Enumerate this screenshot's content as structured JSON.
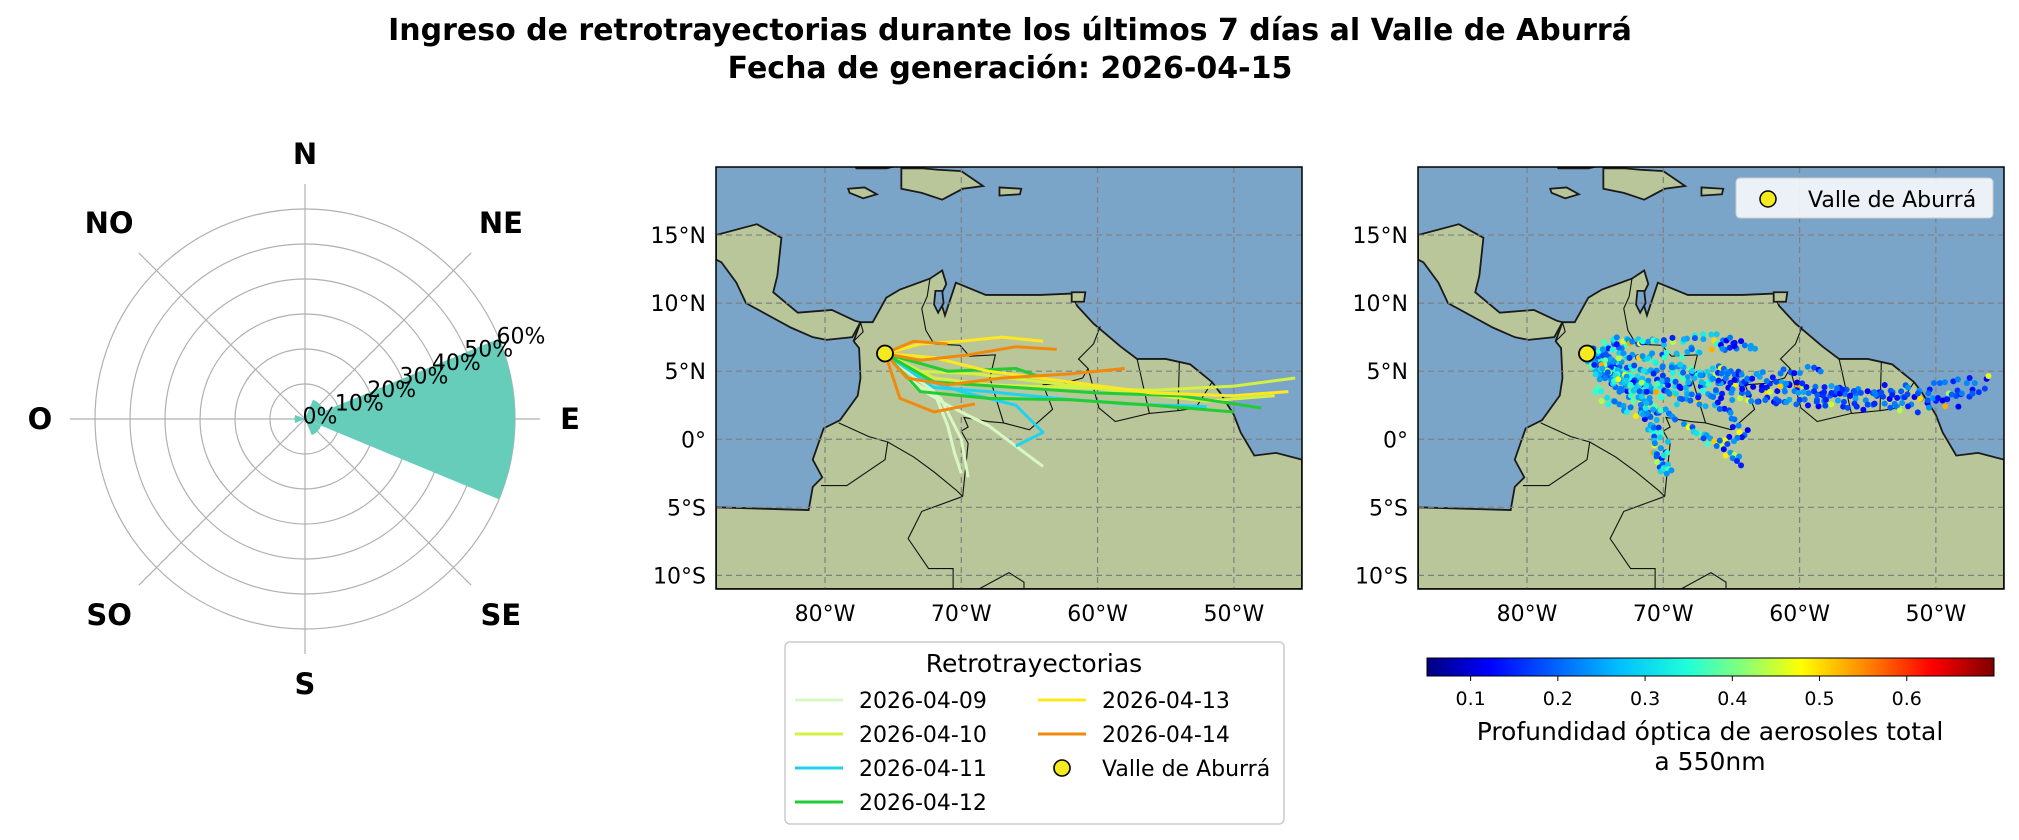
{
  "title": {
    "line1": "Ingreso de retrotrayectorias durante los últimos 7 días al Valle de Aburrá",
    "line2": "Fecha de generación: 2026-04-15"
  },
  "chart_data": [
    {
      "type": "polar-bar",
      "directions": [
        "N",
        "NE",
        "E",
        "SE",
        "S",
        "SO",
        "O",
        "NO"
      ],
      "radial_ticks": [
        "0%",
        "10%",
        "20%",
        "30%",
        "40%",
        "50%",
        "60%"
      ],
      "rmax": 60,
      "values_percent": [
        0,
        6,
        60,
        5,
        0,
        0,
        3,
        0
      ],
      "color": "#66cdbb"
    },
    {
      "type": "map-line",
      "lon_ticks": [
        "80°W",
        "70°W",
        "60°W",
        "50°W"
      ],
      "lat_ticks": [
        "15°N",
        "10°N",
        "5°N",
        "0°",
        "5°S",
        "10°S"
      ],
      "lon_range": [
        -88,
        -45
      ],
      "lat_range": [
        -11,
        20
      ],
      "legend_title": "Retrotrayectorias",
      "receptor": {
        "label": "Valle de Aburrá",
        "lon": -75.6,
        "lat": 6.3
      },
      "series": [
        {
          "name": "2026-04-09",
          "color": "#d9f7c2",
          "paths": [
            [
              [
                -75.6,
                6.3
              ],
              [
                -74,
                5
              ],
              [
                -72,
                3.5
              ],
              [
                -71,
                1
              ],
              [
                -70.5,
                -1
              ],
              [
                -70,
                -2.5
              ]
            ],
            [
              [
                -75.6,
                6.3
              ],
              [
                -73.5,
                4
              ],
              [
                -71,
                2.5
              ],
              [
                -68,
                1
              ],
              [
                -66,
                -0.5
              ],
              [
                -64,
                -2
              ]
            ],
            [
              [
                -75.6,
                6.3
              ],
              [
                -74,
                4.5
              ],
              [
                -71.5,
                3
              ],
              [
                -70,
                0
              ],
              [
                -69.5,
                -2.8
              ]
            ]
          ]
        },
        {
          "name": "2026-04-10",
          "color": "#d4f043",
          "paths": [
            [
              [
                -75.6,
                6.3
              ],
              [
                -72,
                4.5
              ],
              [
                -68,
                4
              ],
              [
                -62,
                3.8
              ],
              [
                -56,
                3.6
              ],
              [
                -50,
                3.9
              ],
              [
                -45.5,
                4.5
              ]
            ],
            [
              [
                -75.6,
                6.3
              ],
              [
                -73,
                5
              ],
              [
                -69,
                4.8
              ],
              [
                -64,
                4.2
              ],
              [
                -58,
                3.5
              ],
              [
                -52,
                2.8
              ],
              [
                -47,
                3.2
              ]
            ]
          ]
        },
        {
          "name": "2026-04-11",
          "color": "#1fd3ee",
          "paths": [
            [
              [
                -75.6,
                6.3
              ],
              [
                -73,
                4.5
              ],
              [
                -70,
                3.5
              ],
              [
                -66,
                2.5
              ],
              [
                -64,
                0.5
              ],
              [
                -66,
                -0.5
              ]
            ],
            [
              [
                -75.6,
                6.3
              ],
              [
                -72,
                3.8
              ],
              [
                -68,
                3.5
              ],
              [
                -63,
                3
              ],
              [
                -58,
                2.6
              ],
              [
                -52,
                2.4
              ]
            ]
          ]
        },
        {
          "name": "2026-04-12",
          "color": "#22cc33",
          "paths": [
            [
              [
                -75.6,
                6.3
              ],
              [
                -72,
                4.2
              ],
              [
                -66,
                3.8
              ],
              [
                -60,
                3.4
              ],
              [
                -54,
                3.2
              ],
              [
                -48,
                2.3
              ]
            ],
            [
              [
                -75.6,
                6.3
              ],
              [
                -73,
                3.5
              ],
              [
                -68,
                3
              ],
              [
                -62,
                2.9
              ],
              [
                -56,
                2.5
              ],
              [
                -50,
                2
              ]
            ],
            [
              [
                -75.6,
                6.3
              ],
              [
                -71,
                5
              ],
              [
                -66,
                5.2
              ],
              [
                -64,
                4.5
              ]
            ]
          ]
        },
        {
          "name": "2026-04-13",
          "color": "#ffe81f",
          "paths": [
            [
              [
                -75.6,
                6.3
              ],
              [
                -73,
                7
              ],
              [
                -70,
                7.2
              ],
              [
                -67,
                7.5
              ],
              [
                -64,
                7.2
              ]
            ],
            [
              [
                -75.6,
                6.3
              ],
              [
                -72,
                6
              ],
              [
                -68,
                5
              ],
              [
                -62,
                4.2
              ],
              [
                -56,
                3.4
              ],
              [
                -50,
                3.2
              ],
              [
                -46,
                3.5
              ]
            ]
          ]
        },
        {
          "name": "2026-04-14",
          "color": "#f08a0f",
          "paths": [
            [
              [
                -75.6,
                6.3
              ],
              [
                -74,
                4.5
              ],
              [
                -71,
                4
              ],
              [
                -67,
                4.5
              ],
              [
                -62,
                4.8
              ],
              [
                -58,
                5.2
              ]
            ],
            [
              [
                -75.6,
                6.3
              ],
              [
                -73,
                5.8
              ],
              [
                -69.5,
                6.2
              ],
              [
                -66,
                6.8
              ],
              [
                -63,
                6.6
              ]
            ],
            [
              [
                -75.6,
                6.3
              ],
              [
                -74.5,
                3
              ],
              [
                -72,
                2
              ],
              [
                -69,
                2.6
              ]
            ],
            [
              [
                -75.6,
                6.3
              ],
              [
                -73.5,
                7.2
              ],
              [
                -71,
                7
              ]
            ]
          ]
        }
      ]
    },
    {
      "type": "map-scatter",
      "lon_ticks": [
        "80°W",
        "70°W",
        "60°W",
        "50°W"
      ],
      "lat_ticks": [
        "15°N",
        "10°N",
        "5°N",
        "0°",
        "5°S",
        "10°S"
      ],
      "lon_range": [
        -88,
        -45
      ],
      "lat_range": [
        -11,
        20
      ],
      "legend_label": "Valle de Aburrá",
      "colorbar": {
        "label_line1": "Profundidad óptica de aerosoles total",
        "label_line2": "a 550nm",
        "range": [
          0.05,
          0.7
        ],
        "ticks": [
          "0.1",
          "0.2",
          "0.3",
          "0.4",
          "0.5",
          "0.6"
        ],
        "tick_values": [
          0.1,
          0.2,
          0.3,
          0.4,
          0.5,
          0.6
        ]
      },
      "color_stops": [
        "#00007f",
        "#0000ff",
        "#007fff",
        "#1fffe0",
        "#7fff7f",
        "#ffff00",
        "#ff7f00",
        "#ff0000",
        "#7f0000"
      ]
    }
  ],
  "land_color": "#b8c69a",
  "sea_color": "#7ba4c9"
}
